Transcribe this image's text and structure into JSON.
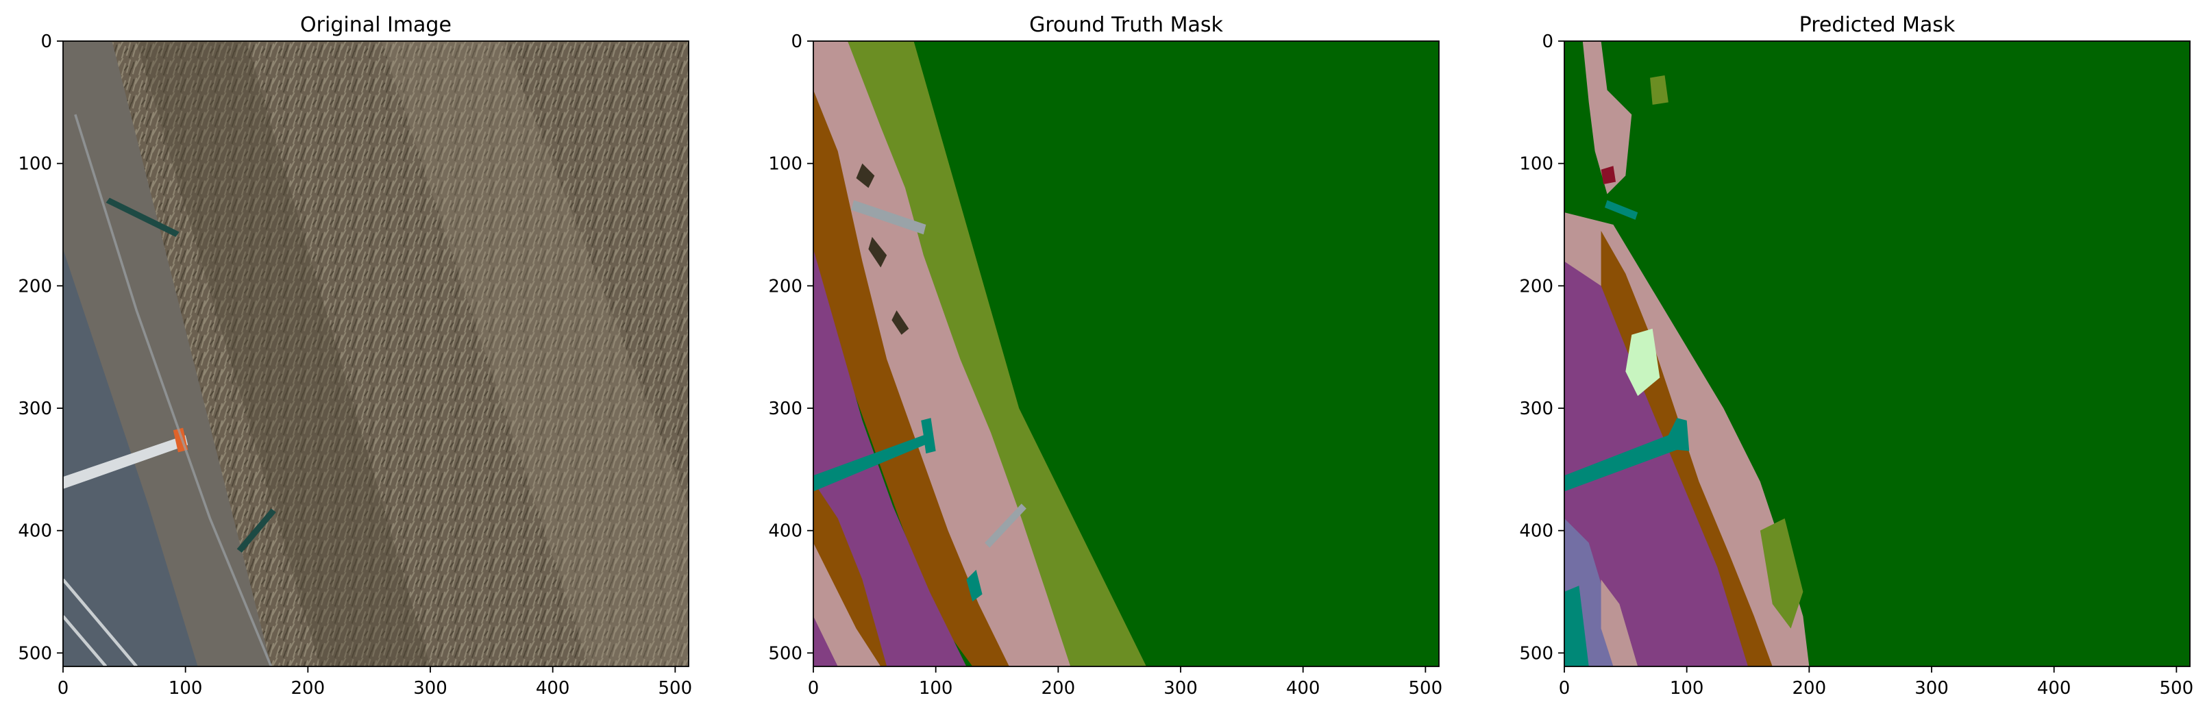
{
  "figure": {
    "colors": {
      "ground_green": "#006400",
      "olive": "#6b8e23",
      "rose": "#bc9595",
      "brown": "#8b4f05",
      "purple": "#823f82",
      "teal": "#008877",
      "gray": "#9aa3a8",
      "dark": "#3a3222",
      "lightgreen": "#c8f5c0",
      "slateblue": "#736fa4",
      "crimson": "#8a1028"
    }
  },
  "chart_data": [
    {
      "type": "image",
      "title": "Original Image",
      "xlim": [
        0,
        511
      ],
      "ylim": [
        511,
        0
      ],
      "xticks": [
        0,
        100,
        200,
        300,
        400,
        500
      ],
      "yticks": [
        0,
        100,
        200,
        300,
        400,
        500
      ]
    },
    {
      "type": "image",
      "title": "Ground Truth Mask",
      "xlim": [
        0,
        511
      ],
      "ylim": [
        511,
        0
      ],
      "xticks": [
        0,
        100,
        200,
        300,
        400,
        500
      ],
      "yticks": [
        0,
        100,
        200,
        300,
        400,
        500
      ]
    },
    {
      "type": "image",
      "title": "Predicted Mask",
      "xlim": [
        0,
        511
      ],
      "ylim": [
        511,
        0
      ],
      "xticks": [
        0,
        100,
        200,
        300,
        400,
        500
      ],
      "yticks": [
        0,
        100,
        200,
        300,
        400,
        500
      ]
    }
  ]
}
